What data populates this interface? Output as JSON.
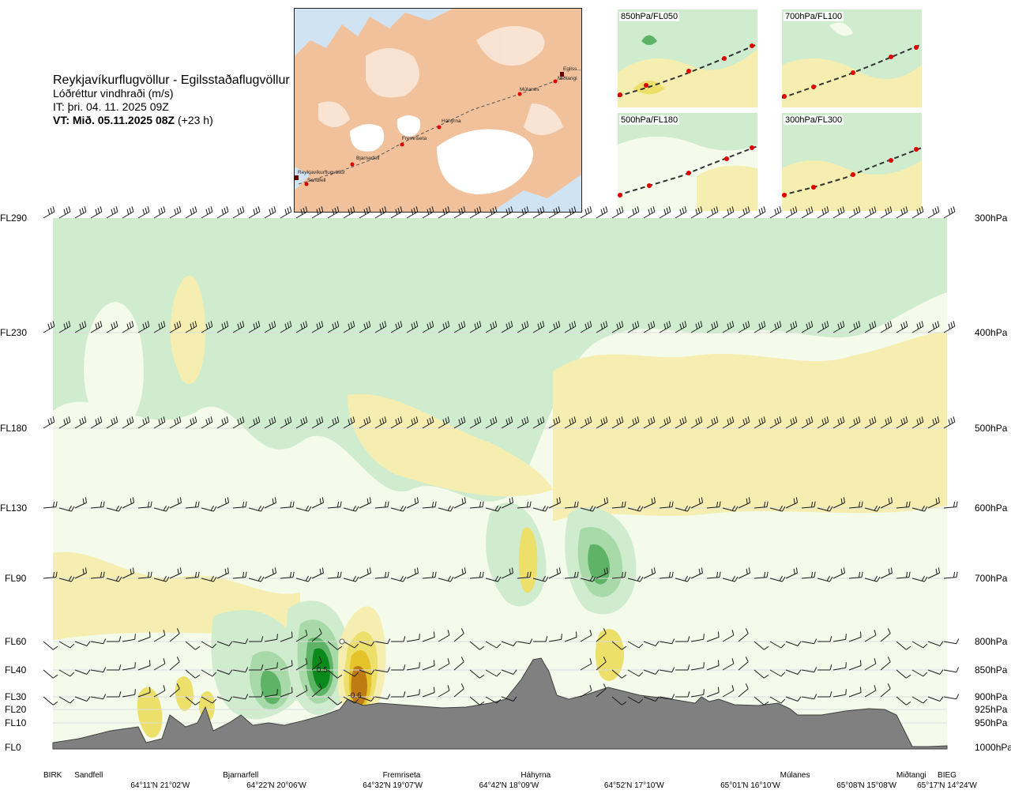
{
  "header": {
    "route": "Reykjavíkurflugvöllur - Egilsstaðaflugvöllur",
    "parameter": "Lóðréttur vindhraði (m/s)",
    "issue_time": "IT: þri. 04. 11. 2025 09Z",
    "valid_prefix": "VT: Mið. 05.11.2025 08Z",
    "valid_suffix": " (+23 h)"
  },
  "map": {
    "labels": [
      "Reykjavíkurflugvöllur",
      "Sandfell",
      "Bjarnarfell",
      "Fremriseta",
      "Háhyrna",
      "Múlanes",
      "Miðtangi",
      "Egilss..."
    ],
    "colors": {
      "sea": "#cfe3f3",
      "land": "#f1c19c",
      "ice": "#ffffff",
      "route": "#555555",
      "point": "#e00000"
    }
  },
  "panels": [
    {
      "label": "850hPa/FL050"
    },
    {
      "label": "700hPa/FL100"
    },
    {
      "label": "500hPa/FL180"
    },
    {
      "label": "300hPa/FL300"
    }
  ],
  "chart_data": {
    "type": "heatmap",
    "left_axis_labels": [
      "FL290",
      "FL230",
      "FL180",
      "FL130",
      "FL90",
      "FL60",
      "FL40",
      "FL30",
      "FL20",
      "FL10",
      "FL0"
    ],
    "right_axis_labels": [
      "300hPa",
      "400hPa",
      "500hPa",
      "600hPa",
      "700hPa",
      "800hPa",
      "850hPa",
      "900hPa",
      "925hPa",
      "950hPa",
      "1000hPa"
    ],
    "pressure_levels": [
      300,
      400,
      500,
      600,
      700,
      800,
      850,
      900,
      925,
      950,
      1000
    ],
    "x_range": [
      0,
      1
    ],
    "stations": [
      {
        "name": "BIRK",
        "x": 0.0
      },
      {
        "name": "Sandfell",
        "x": 0.04
      },
      {
        "name": "Bjarnarfell",
        "x": 0.21
      },
      {
        "name": "Fremriseta",
        "x": 0.39
      },
      {
        "name": "Háhyrna",
        "x": 0.54
      },
      {
        "name": "Múlanes",
        "x": 0.83
      },
      {
        "name": "Miðtangi",
        "x": 0.96
      },
      {
        "name": "BIEG",
        "x": 1.0
      }
    ],
    "coordinates": [
      {
        "label": "64°11'N 21°02'W",
        "x": 0.12
      },
      {
        "label": "64°22'N 20°06'W",
        "x": 0.25
      },
      {
        "label": "64°32'N 19°07'W",
        "x": 0.38
      },
      {
        "label": "64°42'N 18°09'W",
        "x": 0.51
      },
      {
        "label": "64°52'N 17°10'W",
        "x": 0.65
      },
      {
        "label": "65°01'N 16°10'W",
        "x": 0.78
      },
      {
        "label": "65°08'N 15°08'W",
        "x": 0.91
      },
      {
        "label": "65°17'N 14°24'W",
        "x": 1.0
      }
    ],
    "annotations": [
      {
        "text": "0.5",
        "x": 0.302,
        "p": 850
      },
      {
        "text": "-0.6",
        "x": 0.337,
        "p": 898
      }
    ],
    "colors": {
      "strong_up": "#0a8a1a",
      "up": "#5fb366",
      "weak_up": "#a8d9a8",
      "faint_up": "#cfeccf",
      "neutral": "#f5fbea",
      "faint_down": "#f5eeb0",
      "weak_down": "#ecdf6a",
      "down": "#e4c42a",
      "strong_down": "#c07a12",
      "terrain": "#808080"
    }
  }
}
